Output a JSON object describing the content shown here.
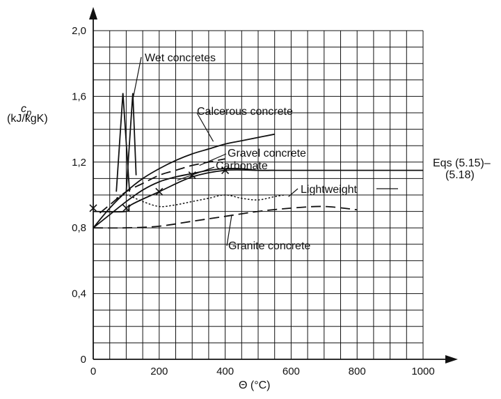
{
  "chart_data": {
    "type": "line",
    "title": "",
    "xlabel": "Θ (°C)",
    "ylabel": "c_p (kJ/kgK)",
    "ylabel_main": "c",
    "ylabel_sub": "p",
    "ylabel_unit": "(kJ/kgK)",
    "xlim": [
      0,
      1000
    ],
    "ylim": [
      0,
      2.0
    ],
    "x_ticks": [
      {
        "value": 0,
        "label": "0"
      },
      {
        "value": 200,
        "label": "200"
      },
      {
        "value": 400,
        "label": "400"
      },
      {
        "value": 600,
        "label": "600"
      },
      {
        "value": 800,
        "label": "800"
      },
      {
        "value": 1000,
        "label": "1000"
      }
    ],
    "y_ticks": [
      {
        "value": 0,
        "label": "0"
      },
      {
        "value": 0.4,
        "label": "0,4"
      },
      {
        "value": 0.8,
        "label": "0,8"
      },
      {
        "value": 1.2,
        "label": "1,2"
      },
      {
        "value": 1.6,
        "label": "1,6"
      },
      {
        "value": 2.0,
        "label": "2,0"
      }
    ],
    "grid": true,
    "series": [
      {
        "name": "Calcerous concrete",
        "style": "solid",
        "x": [
          0,
          50,
          100,
          150,
          200,
          250,
          300,
          350,
          400,
          450,
          500,
          550
        ],
        "y": [
          0.8,
          0.92,
          1.02,
          1.1,
          1.16,
          1.21,
          1.25,
          1.28,
          1.31,
          1.33,
          1.35,
          1.37
        ]
      },
      {
        "name": "Gravel concrete",
        "style": "dashed",
        "x": [
          20,
          50,
          100,
          150,
          200,
          250,
          300,
          350,
          400
        ],
        "y": [
          0.89,
          0.94,
          1.02,
          1.07,
          1.12,
          1.15,
          1.18,
          1.2,
          1.22
        ]
      },
      {
        "name": "Eqs (5.15)–(5.18)",
        "style": "solid",
        "markers": true,
        "x": [
          0,
          100,
          115,
          200,
          300,
          400,
          500,
          600,
          800,
          1000
        ],
        "y": [
          0.9,
          0.9,
          0.94,
          1.02,
          1.11,
          1.15,
          1.15,
          1.15,
          1.15,
          1.15
        ],
        "marker_x": [
          0,
          100,
          200,
          300,
          400
        ],
        "marker_y": [
          0.92,
          0.92,
          1.02,
          1.12,
          1.15
        ]
      },
      {
        "name": "Carbonate",
        "style": "solid",
        "x": [
          0,
          50,
          100,
          150,
          200,
          250,
          300,
          350,
          400,
          450,
          500,
          550
        ],
        "y": [
          0.8,
          0.88,
          0.96,
          1.03,
          1.08,
          1.11,
          1.13,
          1.15,
          1.16,
          1.16,
          1.15,
          1.15
        ]
      },
      {
        "name": "Lightweight",
        "style": "dotted",
        "x": [
          70,
          100,
          150,
          200,
          250,
          300,
          350,
          400,
          450,
          500,
          550,
          580
        ],
        "y": [
          0.98,
          1.0,
          0.96,
          0.93,
          0.94,
          0.96,
          0.98,
          1.0,
          0.98,
          0.97,
          0.99,
          1.0
        ]
      },
      {
        "name": "Granite concrete",
        "style": "dashed",
        "x": [
          0,
          100,
          200,
          300,
          400,
          500,
          600,
          700,
          800
        ],
        "y": [
          0.8,
          0.8,
          0.81,
          0.84,
          0.87,
          0.9,
          0.92,
          0.93,
          0.91
        ]
      },
      {
        "name": "Wet concretes",
        "style": "solid",
        "peaks": true,
        "x": [
          70,
          90,
          110
        ],
        "y": [
          1.02,
          1.62,
          1.02
        ],
        "x2": [
          100,
          120,
          130
        ],
        "y2": [
          1.02,
          1.62,
          1.12
        ]
      }
    ],
    "annotations": [
      {
        "text": "Wet concretes",
        "name": "wet-concretes-label"
      },
      {
        "text": "Calcerous concrete",
        "name": "calcerous-concrete-label"
      },
      {
        "text": "Gravel concrete",
        "name": "gravel-concrete-label"
      },
      {
        "text": "Carbonate",
        "name": "carbonate-label"
      },
      {
        "text": "Lightweight",
        "name": "lightweight-label"
      },
      {
        "text": "Granite concrete",
        "name": "granite-concrete-label"
      },
      {
        "text": "Eqs (5.15)–",
        "name": "eqs-label-line1"
      },
      {
        "text": "(5.18)",
        "name": "eqs-label-line2"
      }
    ]
  }
}
